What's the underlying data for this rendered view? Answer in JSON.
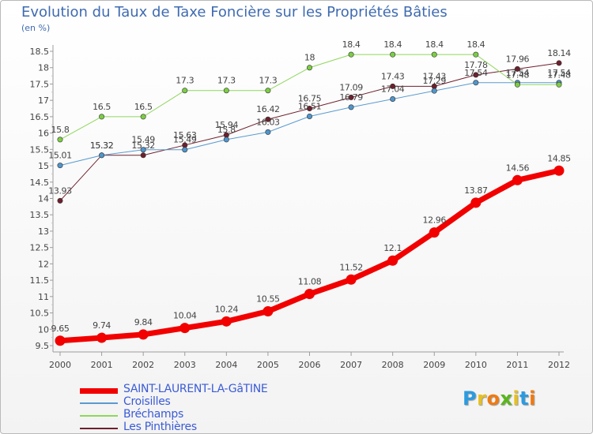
{
  "chart_data": {
    "type": "line",
    "title": "Evolution du Taux de Taxe Foncière sur les Propriétés Bâties",
    "subtitle": "(en %)",
    "x": [
      2000,
      2001,
      2002,
      2003,
      2004,
      2005,
      2006,
      2007,
      2008,
      2009,
      2010,
      2011,
      2012
    ],
    "ylim": [
      9.5,
      18.5
    ],
    "yticks": [
      "9.5",
      "10",
      "10.5",
      "11",
      "11.5",
      "12",
      "12.5",
      "13",
      "13.5",
      "14",
      "14.5",
      "15",
      "15.5",
      "16",
      "16.5",
      "17",
      "17.5",
      "18",
      "18.5"
    ],
    "grid": false,
    "legend_position": "bottom-left",
    "series": [
      {
        "name": "Les Pinthières",
        "color": "#6e1f2c",
        "marker_fill": "#6e1f2c",
        "width": 1,
        "values": [
          13.93,
          15.32,
          15.32,
          15.63,
          15.94,
          16.42,
          16.75,
          17.09,
          17.43,
          17.43,
          17.78,
          17.96,
          18.14
        ],
        "labels": [
          "13.93",
          "15.32",
          "15.32",
          "15.63",
          "15.94",
          "16.42",
          "16.75",
          "17.09",
          "17.43",
          "17.43",
          "17.78",
          "17.96",
          "18.14"
        ]
      },
      {
        "name": "Croisilles",
        "color": "#5a9bd0",
        "marker_fill": "#4f95cc",
        "width": 1,
        "values": [
          15.01,
          15.32,
          15.49,
          15.49,
          15.8,
          16.03,
          16.51,
          16.79,
          17.04,
          17.29,
          17.54,
          17.54,
          17.54
        ],
        "labels": [
          "15.01",
          "15.32",
          "15.49",
          "15.49",
          "15.8",
          "16.03",
          "16.51",
          "16.79",
          "17.04",
          "17.29",
          "17.54",
          "17.54",
          "17.54"
        ]
      },
      {
        "name": "Bréchamps",
        "color": "#8fd65c",
        "marker_fill": "#7ccd43",
        "width": 1,
        "values": [
          15.8,
          16.5,
          16.5,
          17.3,
          17.3,
          17.3,
          18,
          18.4,
          18.4,
          18.4,
          18.4,
          17.48,
          17.48
        ],
        "labels": [
          "15.8",
          "16.5",
          "16.5",
          "17.3",
          "17.3",
          "17.3",
          "18",
          "18.4",
          "18.4",
          "18.4",
          "18.4",
          "17.48",
          "17.48"
        ]
      },
      {
        "name": "SAINT-LAURENT-LA-GâTINE",
        "color": "#f20000",
        "marker_fill": "#f20000",
        "width": 7,
        "values": [
          9.65,
          9.74,
          9.84,
          10.04,
          10.24,
          10.55,
          11.08,
          11.52,
          12.1,
          12.96,
          13.87,
          14.56,
          14.85
        ],
        "labels": [
          "9.65",
          "9.74",
          "9.84",
          "10.04",
          "10.24",
          "10.55",
          "11.08",
          "11.52",
          "12.1",
          "12.96",
          "13.87",
          "14.56",
          "14.85"
        ]
      }
    ]
  },
  "legend": {
    "items": [
      {
        "label": "SAINT-LAURENT-LA-GâTINE",
        "color": "#f20000",
        "thickness": 7
      },
      {
        "label": "Croisilles",
        "color": "#5a9bd0",
        "thickness": 2
      },
      {
        "label": "Bréchamps",
        "color": "#8fd65c",
        "thickness": 2
      },
      {
        "label": "Les Pinthières",
        "color": "#6e1f2c",
        "thickness": 2
      }
    ],
    "text_color": "#3a5bd6"
  },
  "logo": {
    "letters": [
      "P",
      "r",
      "o",
      "x",
      "i",
      "t",
      "i"
    ],
    "colors": [
      "#2b9be0",
      "#e6c020",
      "#f07a10",
      "#59b61b",
      "#e6c020",
      "#2b9be0",
      "#f07a10"
    ]
  }
}
